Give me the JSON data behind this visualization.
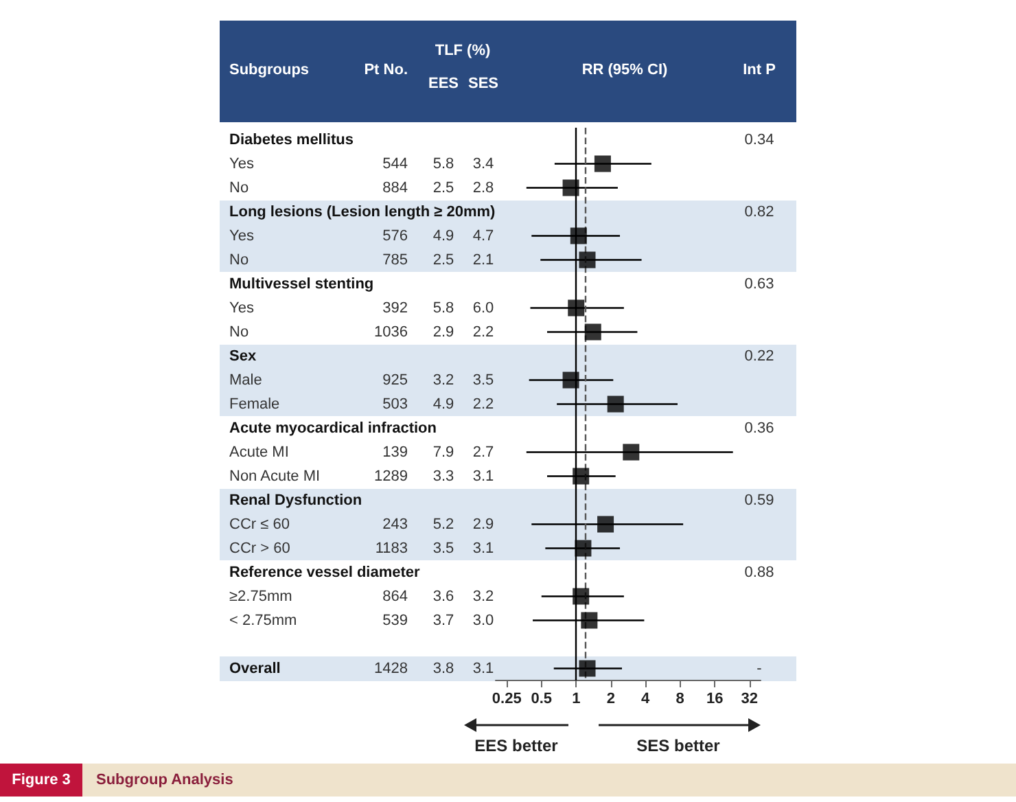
{
  "chart_data": {
    "type": "scatter",
    "orientation": "horizontal",
    "ylabel": "Subgroups",
    "xlabel": "RR (95% CI)",
    "categories": [
      "Diabetes mellitus",
      "Yes",
      "No",
      "Long lesions (Lesion length ≥ 20mm)",
      "Yes",
      "No",
      "Multivessel stenting",
      "Yes",
      "No",
      "Sex",
      "Male",
      "Female",
      "Acute myocardical infraction",
      "Acute MI",
      "Non Acute MI",
      "Renal Dysfunction",
      "CCr ≤ 60",
      "CCr > 60",
      "Reference vessel diameter",
      "≥2.75mm",
      "< 2.75mm",
      null,
      "Overall"
    ],
    "values": [
      null,
      1.7,
      0.9,
      null,
      1.05,
      1.25,
      null,
      1.0,
      1.4,
      null,
      0.9,
      2.2,
      null,
      3.0,
      1.1,
      null,
      1.8,
      1.15,
      null,
      1.1,
      1.3,
      null,
      1.25
    ],
    "errors": [
      null,
      [
        0.65,
        4.5
      ],
      [
        0.37,
        2.3
      ],
      null,
      [
        0.41,
        2.4
      ],
      [
        0.49,
        3.7
      ],
      null,
      [
        0.4,
        2.6
      ],
      [
        0.56,
        3.4
      ],
      null,
      [
        0.39,
        2.1
      ],
      [
        0.68,
        7.6
      ],
      null,
      [
        0.37,
        23
      ],
      [
        0.56,
        2.2
      ],
      null,
      [
        0.41,
        8.5
      ],
      [
        0.54,
        2.4
      ],
      null,
      [
        0.5,
        2.6
      ],
      [
        0.42,
        3.9
      ],
      null,
      [
        0.64,
        2.5
      ]
    ],
    "color": "#000000",
    "marker": "square",
    "log": "x",
    "xlim": [
      0.2,
      40
    ],
    "xticks": [
      0.25,
      0.5,
      1,
      2,
      4,
      8,
      16,
      32
    ],
    "ref_lines": [
      {
        "axis": "x",
        "value": 1,
        "color": "#000000",
        "line_style": "solid"
      },
      {
        "axis": "x",
        "value": 1.2,
        "color": "#555555",
        "line_style": "dashed"
      }
    ],
    "annotations": [
      "Pt No.",
      "TLF (%)",
      "EES",
      "SES",
      "Int P",
      "0.34",
      "544",
      "5.8",
      "3.4",
      "884",
      "2.5",
      "2.8",
      "0.82",
      "576",
      "4.9",
      "4.7",
      "785",
      "2.5",
      "2.1",
      "0.63",
      "392",
      "5.8",
      "6.0",
      "1036",
      "2.9",
      "2.2",
      "0.22",
      "925",
      "3.2",
      "3.5",
      "503",
      "4.9",
      "2.2",
      "0.36",
      "139",
      "7.9",
      "2.7",
      "1289",
      "3.3",
      "3.1",
      "0.59",
      "243",
      "5.2",
      "2.9",
      "1183",
      "3.5",
      "3.1",
      "0.88",
      "864",
      "3.6",
      "3.2",
      "539",
      "3.7",
      "3.0",
      "1428",
      "3.8",
      "3.1",
      "-",
      "EES better",
      "SES better",
      "Figure 3",
      "Subgroup Analysis"
    ]
  }
}
